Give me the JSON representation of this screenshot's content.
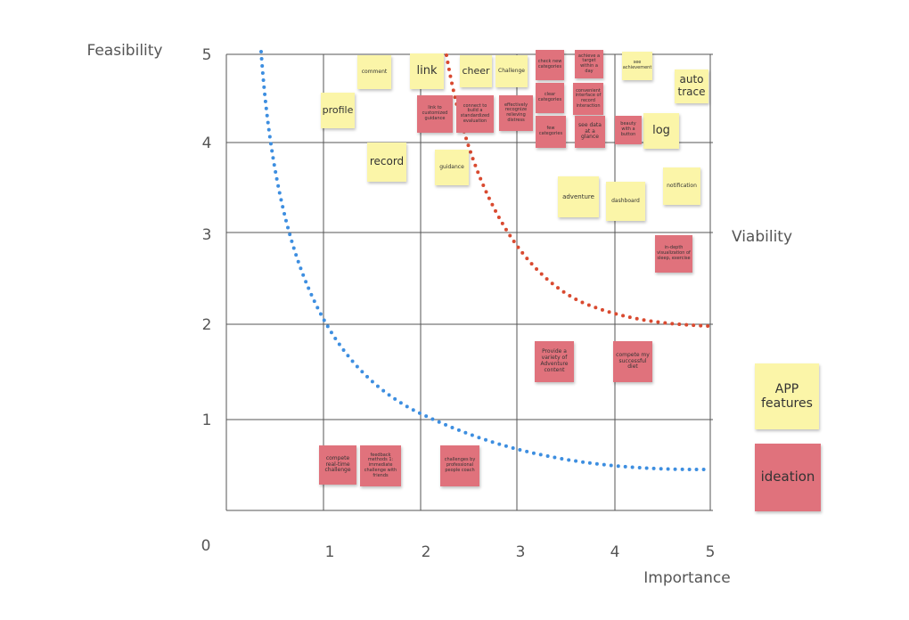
{
  "axes": {
    "y_title": "Feasibility",
    "x_title": "Importance",
    "curve_label": "Viability",
    "origin": "0",
    "x_ticks": [
      "1",
      "2",
      "3",
      "4",
      "5"
    ],
    "y_ticks": [
      "5",
      "4",
      "3",
      "2",
      "1"
    ]
  },
  "notes": [
    {
      "label": "comment",
      "kind": "feature"
    },
    {
      "label": "link",
      "kind": "feature"
    },
    {
      "label": "cheer",
      "kind": "feature"
    },
    {
      "label": "Challenge",
      "kind": "feature"
    },
    {
      "label": "profile",
      "kind": "feature"
    },
    {
      "label": "record",
      "kind": "feature"
    },
    {
      "label": "guidance",
      "kind": "feature"
    },
    {
      "label": "see achievement",
      "kind": "feature"
    },
    {
      "label": "auto trace",
      "kind": "feature"
    },
    {
      "label": "log",
      "kind": "feature"
    },
    {
      "label": "adventure",
      "kind": "feature"
    },
    {
      "label": "dashboard",
      "kind": "feature"
    },
    {
      "label": "notification",
      "kind": "feature"
    },
    {
      "label": "check new categories",
      "kind": "idea"
    },
    {
      "label": "achieve a target within a day",
      "kind": "idea"
    },
    {
      "label": "link to customized guidance",
      "kind": "idea"
    },
    {
      "label": "connect to build a standardized evaluation",
      "kind": "idea"
    },
    {
      "label": "effectively recognize relieving distress",
      "kind": "idea"
    },
    {
      "label": "clear categories",
      "kind": "idea"
    },
    {
      "label": "convenient interface of record interaction",
      "kind": "idea"
    },
    {
      "label": "few categories",
      "kind": "idea"
    },
    {
      "label": "see data at a glance",
      "kind": "idea"
    },
    {
      "label": "beauty with a button",
      "kind": "idea"
    },
    {
      "label": "in-depth visualization of sleep, exercise",
      "kind": "idea"
    },
    {
      "label": "Provide a variety of Adventure content",
      "kind": "idea"
    },
    {
      "label": "compete my successful diet",
      "kind": "idea"
    },
    {
      "label": "compete real-time challenge",
      "kind": "idea"
    },
    {
      "label": "feedback methods 1: immediate challenge with friends",
      "kind": "idea"
    },
    {
      "label": "challenges by professional people coach",
      "kind": "idea"
    }
  ],
  "legend": [
    {
      "label": "APP features",
      "kind": "feature"
    },
    {
      "label": "ideation",
      "kind": "idea"
    }
  ]
}
